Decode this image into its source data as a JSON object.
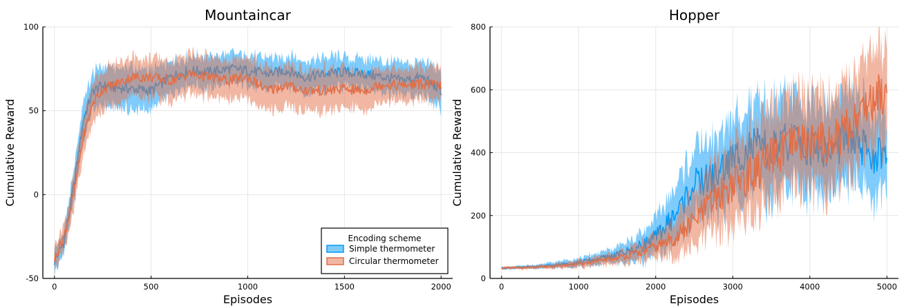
{
  "colors": {
    "simple": "#009AFA",
    "circular": "#E36F47",
    "grid": "#e6e6e6"
  },
  "chart_data": [
    {
      "type": "line",
      "title": "Mountaincar",
      "xlabel": "Episodes",
      "ylabel": "Cumulative Reward",
      "xlim": [
        -60,
        2060
      ],
      "ylim": [
        -50,
        100
      ],
      "xticks": [
        0,
        500,
        1000,
        1500,
        2000
      ],
      "yticks": [
        -50,
        0,
        50,
        100
      ],
      "grid": true,
      "legend": {
        "title": "Encoding scheme",
        "placement": "bottom-right"
      },
      "series": [
        {
          "name": "Simple thermometer",
          "color": "#009AFA",
          "x": [
            0,
            50,
            100,
            150,
            200,
            250,
            300,
            400,
            500,
            600,
            700,
            800,
            900,
            1000,
            1100,
            1200,
            1300,
            1400,
            1500,
            1600,
            1700,
            1800,
            1900,
            2000
          ],
          "mean": [
            -40,
            -28,
            5,
            45,
            62,
            65,
            64,
            63,
            62,
            70,
            74,
            73,
            75,
            74,
            72,
            74,
            70,
            72,
            73,
            72,
            70,
            68,
            70,
            62
          ],
          "band": [
            7,
            7,
            10,
            12,
            12,
            12,
            12,
            13,
            12,
            10,
            9,
            10,
            9,
            9,
            10,
            9,
            10,
            10,
            9,
            9,
            10,
            10,
            10,
            12
          ]
        },
        {
          "name": "Circular thermometer",
          "color": "#E36F47",
          "x": [
            0,
            50,
            100,
            150,
            200,
            250,
            300,
            400,
            500,
            600,
            700,
            800,
            900,
            1000,
            1100,
            1200,
            1300,
            1400,
            1500,
            1600,
            1700,
            1800,
            1900,
            2000
          ],
          "mean": [
            -38,
            -25,
            0,
            35,
            55,
            63,
            65,
            70,
            70,
            68,
            72,
            70,
            68,
            70,
            62,
            65,
            62,
            62,
            63,
            62,
            66,
            65,
            66,
            65
          ],
          "band": [
            7,
            8,
            10,
            12,
            12,
            12,
            12,
            12,
            12,
            12,
            12,
            12,
            12,
            12,
            13,
            13,
            12,
            13,
            12,
            12,
            10,
            10,
            10,
            10
          ]
        }
      ]
    },
    {
      "type": "line",
      "title": "Hopper",
      "xlabel": "Episodes",
      "ylabel": "Cumulative Reward",
      "xlim": [
        -150,
        5150
      ],
      "ylim": [
        0,
        800
      ],
      "xticks": [
        0,
        1000,
        2000,
        3000,
        4000,
        5000
      ],
      "yticks": [
        0,
        200,
        400,
        600,
        800
      ],
      "grid": true,
      "series": [
        {
          "name": "Simple thermometer",
          "color": "#009AFA",
          "x": [
            0,
            250,
            500,
            750,
            1000,
            1250,
            1500,
            1750,
            2000,
            2250,
            2500,
            2750,
            3000,
            3250,
            3500,
            3750,
            4000,
            4250,
            4500,
            4750,
            5000
          ],
          "mean": [
            33,
            35,
            38,
            44,
            52,
            62,
            75,
            95,
            130,
            200,
            300,
            320,
            380,
            420,
            400,
            440,
            420,
            400,
            450,
            400,
            380
          ],
          "band": [
            4,
            5,
            7,
            10,
            14,
            18,
            25,
            40,
            60,
            90,
            110,
            120,
            130,
            140,
            150,
            150,
            140,
            140,
            150,
            140,
            130
          ]
        },
        {
          "name": "Circular thermometer",
          "color": "#E36F47",
          "x": [
            0,
            250,
            500,
            750,
            1000,
            1250,
            1500,
            1750,
            2000,
            2250,
            2500,
            2750,
            3000,
            3250,
            3500,
            3750,
            4000,
            4250,
            4500,
            4750,
            5000
          ],
          "mean": [
            33,
            34,
            36,
            40,
            46,
            55,
            65,
            80,
            100,
            130,
            180,
            250,
            300,
            330,
            380,
            420,
            440,
            430,
            480,
            560,
            600
          ],
          "band": [
            4,
            5,
            6,
            8,
            12,
            15,
            20,
            28,
            40,
            60,
            90,
            110,
            130,
            140,
            150,
            150,
            150,
            150,
            150,
            160,
            160
          ]
        }
      ]
    }
  ]
}
